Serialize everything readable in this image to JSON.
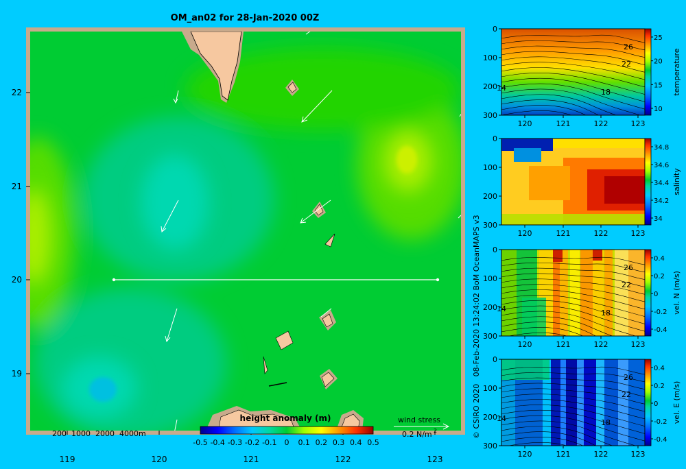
{
  "colors": {
    "background": "#00ccff",
    "land": "#f6c8a0",
    "shelf": "#c8aa8c",
    "section_line": "#ffffff",
    "vector": "#ffffff"
  },
  "main_map": {
    "title": "OM_an02 for 28-Jan-2020 00Z",
    "x_ticks": [
      "119",
      "120",
      "121",
      "122",
      "123"
    ],
    "y_ticks": [
      "22",
      "21",
      "20",
      "19"
    ],
    "depth_legend": "200  1000  2000  4000m",
    "colorbar_title": "height anomaly (m)",
    "colorbar_ticks": [
      "-0.5",
      "-0.4",
      "-0.3",
      "-0.2",
      "-0.1",
      "0",
      "0.1",
      "0.2",
      "0.3",
      "0.4",
      "0.5"
    ],
    "wind_stress_title": "wind stress",
    "wind_stress_scale": "0.2 N/m",
    "wind_stress_exp": "2"
  },
  "credit": "© CSIRO 2020   08-Feb-2020 13:24:02 BoM OceanMAPS v3",
  "chart_data": [
    {
      "type": "heatmap",
      "title": "OM_an02 for 28-Jan-2020 00Z",
      "variable": "height anomaly (m)",
      "xlim": [
        118.5,
        123.5
      ],
      "ylim": [
        18.2,
        22.7
      ],
      "colorbar_range": [
        -0.5,
        0.5
      ],
      "features": [
        {
          "lon": 122.6,
          "lat": 21.3,
          "value": 0.15
        },
        {
          "lon": 118.6,
          "lat": 20.5,
          "value": 0.12
        },
        {
          "lon": 119.9,
          "lat": 20.8,
          "value": -0.12
        },
        {
          "lon": 119.4,
          "lat": 18.8,
          "value": -0.2
        },
        {
          "lon": 121.2,
          "lat": 22.4,
          "value": 0.05
        }
      ],
      "section_line": {
        "lat": 20.0,
        "lon_start": 119.5,
        "lon_end": 123.2
      }
    },
    {
      "type": "heatmap",
      "ylabel": "temperature",
      "x_ticks": [
        "120",
        "121",
        "122",
        "123"
      ],
      "y_ticks": [
        "0",
        "100",
        "200",
        "300"
      ],
      "colorbar_ticks": [
        "25",
        "20",
        "15",
        "10"
      ],
      "contour_labels": [
        "26",
        "22",
        "14",
        "18"
      ],
      "vmin": 8,
      "vmax": 28
    },
    {
      "type": "heatmap",
      "ylabel": "salinity",
      "x_ticks": [
        "120",
        "121",
        "122",
        "123"
      ],
      "y_ticks": [
        "0",
        "100",
        "200",
        "300"
      ],
      "colorbar_ticks": [
        "34.8",
        "34.6",
        "34.4",
        "34.2",
        "34"
      ],
      "vmin": 33.9,
      "vmax": 34.9
    },
    {
      "type": "heatmap",
      "ylabel": "vel. N  (m/s)",
      "x_ticks": [
        "120",
        "121",
        "122",
        "123"
      ],
      "y_ticks": [
        "0",
        "100",
        "200",
        "300"
      ],
      "colorbar_ticks": [
        "0.4",
        "0.2",
        "0",
        "-0.2",
        "-0.4"
      ],
      "contour_labels": [
        "26",
        "22",
        "14",
        "18"
      ],
      "vmin": -0.4,
      "vmax": 0.4
    },
    {
      "type": "heatmap",
      "ylabel": "vel. E  (m/s)",
      "x_ticks": [
        "120",
        "121",
        "122",
        "123"
      ],
      "y_ticks": [
        "0",
        "100",
        "200",
        "300"
      ],
      "colorbar_ticks": [
        "0.4",
        "0.2",
        "0",
        "-0.2",
        "-0.4"
      ],
      "contour_labels": [
        "26",
        "22",
        "14",
        "18"
      ],
      "vmin": -0.4,
      "vmax": 0.4
    }
  ],
  "panels": [
    {
      "label": "temperature",
      "cb_ticks": [
        "25",
        "20",
        "15",
        "10"
      ],
      "contours": [
        "26",
        "22",
        "14",
        "18"
      ]
    },
    {
      "label": "salinity",
      "cb_ticks": [
        "34.8",
        "34.6",
        "34.4",
        "34.2",
        "34"
      ],
      "contours": [
        "",
        "",
        "",
        ""
      ]
    },
    {
      "label": "vel. N  (m/s)",
      "cb_ticks": [
        "0.4",
        "0.2",
        "0",
        "-0.2",
        "-0.4"
      ],
      "contours": [
        "26",
        "22",
        "14",
        "18"
      ]
    },
    {
      "label": "vel. E  (m/s)",
      "cb_ticks": [
        "0.4",
        "0.2",
        "0",
        "-0.2",
        "-0.4"
      ],
      "contours": [
        "26",
        "22",
        "14",
        "18"
      ]
    }
  ],
  "panel_axes": {
    "x_ticks": [
      "120",
      "121",
      "122",
      "123"
    ],
    "y_ticks": [
      "0",
      "100",
      "200",
      "300"
    ]
  }
}
